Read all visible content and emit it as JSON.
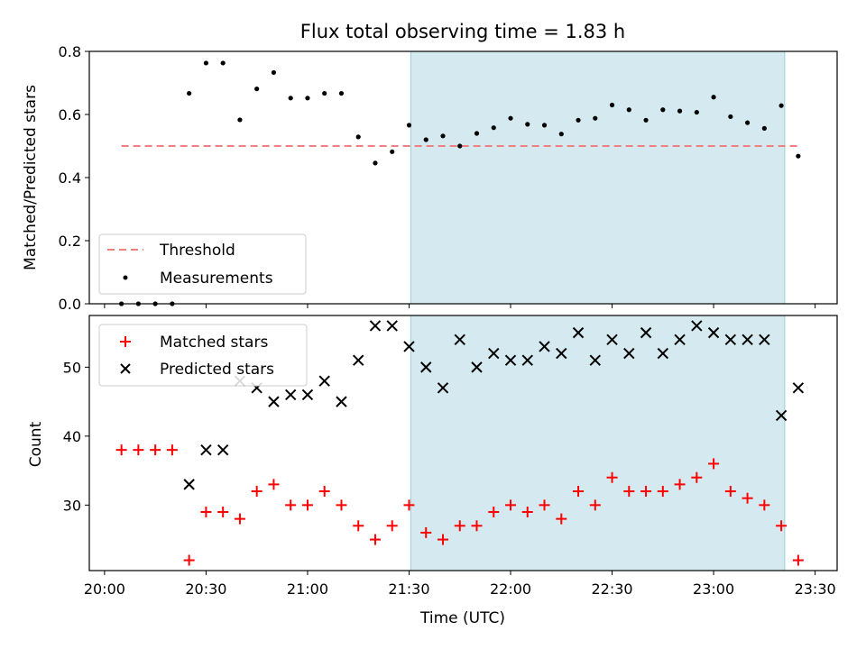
{
  "chart_data": [
    {
      "type": "scatter",
      "title": "Flux total observing time = 1.83 h",
      "xlabel": "",
      "ylabel": "Matched/Predicted stars",
      "ylim": [
        0,
        0.8
      ],
      "yticks": [
        "0.0",
        "0.2",
        "0.4",
        "0.6",
        "0.8"
      ],
      "shaded_region": {
        "x_start_min": 90.5,
        "x_end_min": 201,
        "color": "#d4eaf0"
      },
      "threshold": {
        "name": "Threshold",
        "value": 0.5,
        "x_range_min": [
          5,
          206
        ],
        "color": "#f08080"
      },
      "legend": {
        "placement": "lower-left",
        "entries": [
          "Threshold",
          "Measurements"
        ]
      },
      "series": [
        {
          "name": "Measurements",
          "color": "#000000",
          "x_min": [
            5,
            10,
            15,
            20,
            25,
            30,
            35,
            40,
            45,
            50,
            55,
            60,
            65,
            70,
            75,
            80,
            85,
            90,
            95,
            100,
            105,
            110,
            115,
            120,
            125,
            130,
            135,
            140,
            145,
            150,
            155,
            160,
            165,
            170,
            175,
            180,
            185,
            190,
            195,
            200,
            205
          ],
          "values": [
            0.0,
            0.0,
            0.0,
            0.0,
            0.667,
            0.763,
            0.763,
            0.583,
            0.681,
            0.733,
            0.652,
            0.652,
            0.667,
            0.667,
            0.529,
            0.446,
            0.482,
            0.566,
            0.52,
            0.532,
            0.5,
            0.54,
            0.558,
            0.588,
            0.569,
            0.566,
            0.538,
            0.582,
            0.588,
            0.63,
            0.615,
            0.582,
            0.615,
            0.611,
            0.607,
            0.655,
            0.593,
            0.574,
            0.556,
            0.628,
            0.468
          ]
        }
      ]
    },
    {
      "type": "scatter",
      "xlabel": "Time (UTC)",
      "ylabel": "Count",
      "ylim": [
        20.5,
        57.5
      ],
      "yticks": [
        "30",
        "40",
        "50"
      ],
      "xlim_min": [
        -4.5,
        216.5
      ],
      "xticks": [
        "20:00",
        "20:30",
        "21:00",
        "21:30",
        "22:00",
        "22:30",
        "23:00",
        "23:30"
      ],
      "shaded_region": {
        "x_start_min": 90.5,
        "x_end_min": 201,
        "color": "#d4eaf0"
      },
      "legend": {
        "placement": "upper-left",
        "entries": [
          "Matched stars",
          "Predicted stars"
        ]
      },
      "series": [
        {
          "name": "Matched stars",
          "color": "#ff0000",
          "marker": "plus",
          "x_min": [
            5,
            10,
            15,
            20,
            25,
            30,
            35,
            40,
            45,
            50,
            55,
            60,
            65,
            70,
            75,
            80,
            85,
            90,
            95,
            100,
            105,
            110,
            115,
            120,
            125,
            130,
            135,
            140,
            145,
            150,
            155,
            160,
            165,
            170,
            175,
            180,
            185,
            190,
            195,
            200,
            205
          ],
          "values": [
            38,
            38,
            38,
            38,
            22,
            29,
            29,
            28,
            32,
            33,
            30,
            30,
            32,
            30,
            27,
            25,
            27,
            30,
            26,
            25,
            27,
            27,
            29,
            30,
            29,
            30,
            28,
            32,
            30,
            34,
            32,
            32,
            32,
            33,
            34,
            36,
            32,
            31,
            30,
            27,
            22
          ]
        },
        {
          "name": "Predicted stars",
          "color": "#000000",
          "marker": "x",
          "x_min": [
            25,
            30,
            35,
            40,
            45,
            50,
            55,
            60,
            65,
            70,
            75,
            80,
            85,
            90,
            95,
            100,
            105,
            110,
            115,
            120,
            125,
            130,
            135,
            140,
            145,
            150,
            155,
            160,
            165,
            170,
            175,
            180,
            185,
            190,
            195,
            200,
            205
          ],
          "values": [
            33,
            38,
            38,
            48,
            47,
            45,
            46,
            46,
            48,
            45,
            51,
            56,
            56,
            53,
            50,
            47,
            54,
            50,
            52,
            51,
            51,
            53,
            52,
            55,
            51,
            54,
            52,
            55,
            52,
            54,
            56,
            55,
            54,
            54,
            54,
            43,
            47
          ]
        }
      ]
    }
  ]
}
